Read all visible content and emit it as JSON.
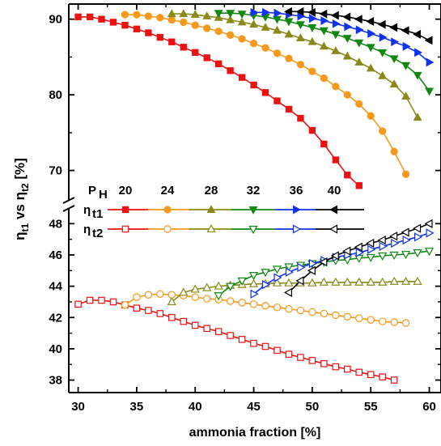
{
  "chart_data": {
    "type": "line",
    "xlabel": "ammonia fraction [%]",
    "ylabel": {
      "main": "η",
      "sub1": "t1",
      "mid": " vs η",
      "sub2": "t2",
      "unit": " [%]"
    },
    "x_ticks": [
      30,
      35,
      40,
      45,
      50,
      55,
      60
    ],
    "upper_panel": {
      "ylim": [
        66,
        92
      ],
      "y_ticks": [
        70,
        80,
        90
      ]
    },
    "lower_panel": {
      "ylim": [
        37.2,
        49
      ],
      "y_ticks": [
        38,
        40,
        42,
        44,
        46,
        48
      ]
    },
    "xlim": [
      29.2,
      61
    ],
    "legend": {
      "ph_label": "P",
      "ph_sub": "H",
      "pressures": [
        "20",
        "24",
        "28",
        "32",
        "36",
        "40"
      ],
      "eta1_label": "η",
      "eta1_sub": "t1",
      "eta2_label": "η",
      "eta2_sub": "t2"
    },
    "series": [
      {
        "pressure": 20,
        "color": "#ee1111",
        "marker": "square",
        "eta_t1": {
          "x": [
            30,
            31,
            32,
            33,
            34,
            35,
            36,
            37,
            38,
            39,
            40,
            41,
            42,
            43,
            44,
            45,
            46,
            47,
            48,
            49,
            50,
            51,
            52,
            53,
            54
          ],
          "y": [
            90.3,
            90.3,
            90.0,
            89.6,
            89.2,
            88.7,
            88.2,
            87.6,
            87.0,
            86.3,
            85.6,
            84.9,
            84.1,
            83.2,
            82.3,
            81.3,
            80.3,
            79.2,
            78.1,
            76.9,
            75.3,
            73.5,
            71.4,
            69.4,
            68.0
          ]
        },
        "eta_t2": {
          "x": [
            30,
            31,
            32,
            33,
            34,
            35,
            36,
            37,
            38,
            39,
            40,
            41,
            42,
            43,
            44,
            45,
            46,
            47,
            48,
            49,
            50,
            51,
            52,
            53,
            54,
            55,
            56,
            57
          ],
          "y": [
            42.85,
            43.1,
            43.1,
            43.0,
            42.8,
            42.6,
            42.45,
            42.25,
            42.0,
            41.75,
            41.5,
            41.3,
            41.1,
            40.85,
            40.6,
            40.35,
            40.15,
            39.9,
            39.65,
            39.45,
            39.25,
            39.05,
            38.85,
            38.7,
            38.5,
            38.35,
            38.2,
            38.0
          ]
        }
      },
      {
        "pressure": 24,
        "color": "#f59a1c",
        "marker": "circle",
        "eta_t1": {
          "x": [
            34,
            35,
            36,
            37,
            38,
            39,
            40,
            41,
            42,
            43,
            44,
            45,
            46,
            47,
            48,
            49,
            50,
            51,
            52,
            53,
            54,
            55,
            56,
            57,
            58
          ],
          "y": [
            90.6,
            90.6,
            90.4,
            90.2,
            89.9,
            89.6,
            89.2,
            88.8,
            88.4,
            87.9,
            87.4,
            86.8,
            86.2,
            85.5,
            84.8,
            84.0,
            83.1,
            82.2,
            81.1,
            80.0,
            78.8,
            77.2,
            75.2,
            72.5,
            69.5
          ]
        },
        "eta_t2": {
          "x": [
            34,
            35,
            36,
            37,
            38,
            39,
            40,
            41,
            42,
            43,
            44,
            45,
            46,
            47,
            48,
            49,
            50,
            51,
            52,
            53,
            54,
            55,
            56,
            57,
            58
          ],
          "y": [
            42.8,
            43.3,
            43.45,
            43.5,
            43.45,
            43.4,
            43.3,
            43.2,
            43.15,
            43.05,
            42.95,
            42.85,
            42.75,
            42.65,
            42.55,
            42.45,
            42.35,
            42.25,
            42.15,
            42.05,
            41.95,
            41.85,
            41.75,
            41.7,
            41.65
          ]
        }
      },
      {
        "pressure": 28,
        "color": "#8a8a1a",
        "marker": "triangle-up",
        "eta_t1": {
          "x": [
            38,
            39,
            40,
            41,
            42,
            43,
            44,
            45,
            46,
            47,
            48,
            49,
            50,
            51,
            52,
            53,
            54,
            55,
            56,
            57,
            58,
            59
          ],
          "y": [
            90.7,
            90.7,
            90.6,
            90.4,
            90.2,
            89.9,
            89.6,
            89.3,
            88.9,
            88.5,
            88.0,
            87.5,
            87.0,
            86.4,
            85.8,
            85.1,
            84.3,
            83.5,
            82.5,
            81.4,
            79.8,
            77.0
          ]
        },
        "eta_t2": {
          "x": [
            38,
            39,
            40,
            41,
            42,
            43,
            44,
            45,
            46,
            47,
            48,
            49,
            50,
            51,
            52,
            53,
            54,
            55,
            56,
            57,
            58,
            59
          ],
          "y": [
            43.0,
            43.6,
            43.8,
            43.9,
            44.0,
            44.05,
            44.1,
            44.15,
            44.15,
            44.2,
            44.2,
            44.2,
            44.2,
            44.25,
            44.25,
            44.25,
            44.25,
            44.25,
            44.25,
            44.3,
            44.3,
            44.3
          ]
        }
      },
      {
        "pressure": 32,
        "color": "#118811",
        "marker": "triangle-down",
        "eta_t1": {
          "x": [
            42,
            43,
            44,
            45,
            46,
            47,
            48,
            49,
            50,
            51,
            52,
            53,
            54,
            55,
            56,
            57,
            58,
            59,
            60
          ],
          "y": [
            90.8,
            90.8,
            90.7,
            90.5,
            90.3,
            90.0,
            89.7,
            89.3,
            88.9,
            88.5,
            88.0,
            87.5,
            86.9,
            86.3,
            85.6,
            84.8,
            83.9,
            82.6,
            80.5
          ]
        },
        "eta_t2": {
          "x": [
            42,
            43,
            44,
            45,
            46,
            47,
            48,
            49,
            50,
            51,
            52,
            53,
            54,
            55,
            56,
            57,
            58,
            59,
            60
          ],
          "y": [
            43.4,
            44.0,
            44.35,
            44.7,
            44.9,
            45.1,
            45.25,
            45.35,
            45.45,
            45.55,
            45.65,
            45.7,
            45.8,
            45.85,
            45.95,
            46.0,
            46.05,
            46.15,
            46.25
          ]
        }
      },
      {
        "pressure": 36,
        "color": "#1133ee",
        "marker": "triangle-right",
        "eta_t1": {
          "x": [
            45,
            46,
            47,
            48,
            49,
            50,
            51,
            52,
            53,
            54,
            55,
            56,
            57,
            58,
            59,
            60
          ],
          "y": [
            90.9,
            90.9,
            90.8,
            90.6,
            90.4,
            90.1,
            89.8,
            89.4,
            89.0,
            88.6,
            88.1,
            87.6,
            87.0,
            86.4,
            85.6,
            84.3
          ]
        },
        "eta_t2": {
          "x": [
            45,
            46,
            47,
            48,
            49,
            50,
            51,
            52,
            53,
            54,
            55,
            56,
            57,
            58,
            59,
            60
          ],
          "y": [
            43.5,
            44.1,
            44.55,
            44.9,
            45.2,
            45.45,
            45.65,
            45.85,
            46.0,
            46.15,
            46.35,
            46.55,
            46.75,
            46.95,
            47.15,
            47.4
          ]
        }
      },
      {
        "pressure": 40,
        "color": "#000000",
        "marker": "triangle-left",
        "eta_t1": {
          "x": [
            48,
            49,
            50,
            51,
            52,
            53,
            54,
            55,
            56,
            57,
            58,
            59,
            60
          ],
          "y": [
            91.0,
            91.0,
            90.9,
            90.7,
            90.5,
            90.3,
            90.0,
            89.7,
            89.3,
            88.9,
            88.5,
            88.0,
            87.2
          ]
        },
        "eta_t2": {
          "x": [
            48,
            49,
            50,
            51,
            52,
            53,
            54,
            55,
            56,
            57,
            58,
            59,
            60
          ],
          "y": [
            43.6,
            44.35,
            45.0,
            45.55,
            45.95,
            46.25,
            46.5,
            46.75,
            46.95,
            47.2,
            47.45,
            47.7,
            48.0
          ]
        }
      }
    ]
  }
}
